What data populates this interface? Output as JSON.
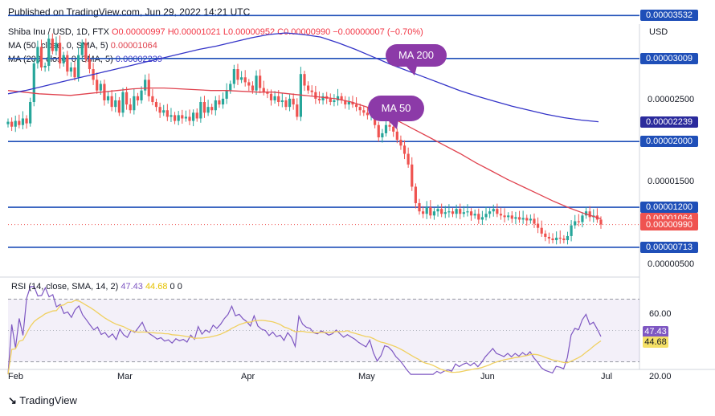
{
  "header": {
    "published": "Published on TradingView.com, Jun 29, 2022 14:21 UTC"
  },
  "legend": {
    "symbol": "Shiba Inu / USD, 1D, FTX",
    "ohlc": "O0.00000997 H0.00001021 L0.00000952 C0.00000990 −0.00000007 (−0.70%)",
    "ma50_label": "MA (50, close, 0, SMA, 5)",
    "ma50_value": "0.00001064",
    "ma200_label": "MA (200, close, 0, SMA, 5)",
    "ma200_value": "0.00002239",
    "rsi_label": "RSI (14, close, SMA, 14, 2)",
    "rsi_value": "47.43",
    "rsi_ma_value": "44.68",
    "rsi_extra": "0 0"
  },
  "annotations": {
    "ma200_bubble": "MA 200",
    "ma50_bubble": "MA 50"
  },
  "footer": {
    "logo_text": "TradingView"
  },
  "colors": {
    "bull": "#26a69a",
    "bear": "#ef5350",
    "ma50": "#e0434f",
    "ma200": "#3434c8",
    "level": "#1f4fb8",
    "rsi": "#7e57c2",
    "rsi_ma": "#f0d060",
    "bubble": "#8c3aa8"
  },
  "chart_data": {
    "type": "candlestick",
    "currency": "USD",
    "price_axis_ticks": [
      "0.00002500",
      "0.00001500",
      "0.00000500"
    ],
    "price_tags": [
      {
        "label": "0.00003532",
        "kind": "level"
      },
      {
        "label": "0.00003009",
        "kind": "level"
      },
      {
        "label": "0.00002239",
        "kind": "ma200"
      },
      {
        "label": "0.00002000",
        "kind": "level"
      },
      {
        "label": "0.00001200",
        "kind": "level"
      },
      {
        "label": "0.00001064",
        "kind": "ma50"
      },
      {
        "label": "0.00000990",
        "kind": "last"
      },
      {
        "label": "0.00000713",
        "kind": "level"
      }
    ],
    "horizontal_levels": [
      3.532e-05,
      3.009e-05,
      2e-05,
      1.2e-05,
      7.13e-06
    ],
    "last_close": 9.9e-06,
    "x_labels": [
      "Feb",
      "Mar",
      "Apr",
      "May",
      "Jun",
      "Jul"
    ],
    "rsi_axis_ticks": [
      "60.00",
      "20.00"
    ],
    "rsi_tags": [
      "47.43",
      "44.68"
    ],
    "rsi_bands": [
      70,
      30
    ],
    "candles_close": [
      2.24,
      2.18,
      2.25,
      2.2,
      2.28,
      2.22,
      2.48,
      2.95,
      3.15,
      2.9,
      2.92,
      3.25,
      3.1,
      3.2,
      2.95,
      3.05,
      2.85,
      2.9,
      2.78,
      3.05,
      3.2,
      3.0,
      2.88,
      2.75,
      2.62,
      2.7,
      2.5,
      2.55,
      2.42,
      2.5,
      2.35,
      2.6,
      2.45,
      2.38,
      2.55,
      2.5,
      2.62,
      2.75,
      2.55,
      2.48,
      2.42,
      2.35,
      2.38,
      2.3,
      2.32,
      2.25,
      2.32,
      2.28,
      2.3,
      2.25,
      2.35,
      2.28,
      2.48,
      2.35,
      2.42,
      2.38,
      2.5,
      2.45,
      2.52,
      2.62,
      2.7,
      2.88,
      2.75,
      2.78,
      2.72,
      2.68,
      2.62,
      2.8,
      2.65,
      2.6,
      2.58,
      2.5,
      2.55,
      2.48,
      2.5,
      2.42,
      2.52,
      2.45,
      2.3,
      2.82,
      2.68,
      2.62,
      2.6,
      2.52,
      2.5,
      2.55,
      2.52,
      2.48,
      2.5,
      2.55,
      2.5,
      2.45,
      2.48,
      2.45,
      2.42,
      2.38,
      2.35,
      2.32,
      2.38,
      2.2,
      2.05,
      2.1,
      2.2,
      2.18,
      2.12,
      2.02,
      1.95,
      1.85,
      1.72,
      1.45,
      1.25,
      1.15,
      1.12,
      1.2,
      1.1,
      1.15,
      1.18,
      1.12,
      1.14,
      1.15,
      1.12,
      1.18,
      1.12,
      1.14,
      1.15,
      1.1,
      1.12,
      1.05,
      1.08,
      1.12,
      1.15,
      1.18,
      1.12,
      1.1,
      1.08,
      1.1,
      1.06,
      1.08,
      1.05,
      1.07,
      1.04,
      1.06,
      1.0,
      0.95,
      0.88,
      0.84,
      0.82,
      0.8,
      0.83,
      0.82,
      0.8,
      0.85,
      0.98,
      1.03,
      1.02,
      1.1,
      1.15,
      1.08,
      1.1,
      1.05,
      0.99
    ],
    "ma50": [
      2.62,
      2.6,
      2.58,
      2.57,
      2.56,
      2.58,
      2.6,
      2.62,
      2.64,
      2.65,
      2.65,
      2.64,
      2.63,
      2.62,
      2.62,
      2.61,
      2.6,
      2.6,
      2.58,
      2.56,
      2.54,
      2.52,
      2.48,
      2.42,
      2.34,
      2.25,
      2.15,
      2.05,
      1.95,
      1.85,
      1.74,
      1.64,
      1.54,
      1.45,
      1.36,
      1.27,
      1.19,
      1.12,
      1.06
    ],
    "ma200": [
      2.58,
      2.62,
      2.67,
      2.72,
      2.77,
      2.82,
      2.87,
      2.92,
      2.97,
      3.02,
      3.07,
      3.12,
      3.16,
      3.21,
      3.26,
      3.3,
      3.32,
      3.3,
      3.27,
      3.2,
      3.12,
      3.03,
      2.94,
      2.86,
      2.78,
      2.7,
      2.62,
      2.55,
      2.49,
      2.43,
      2.38,
      2.33,
      2.29,
      2.26,
      2.24
    ]
  }
}
